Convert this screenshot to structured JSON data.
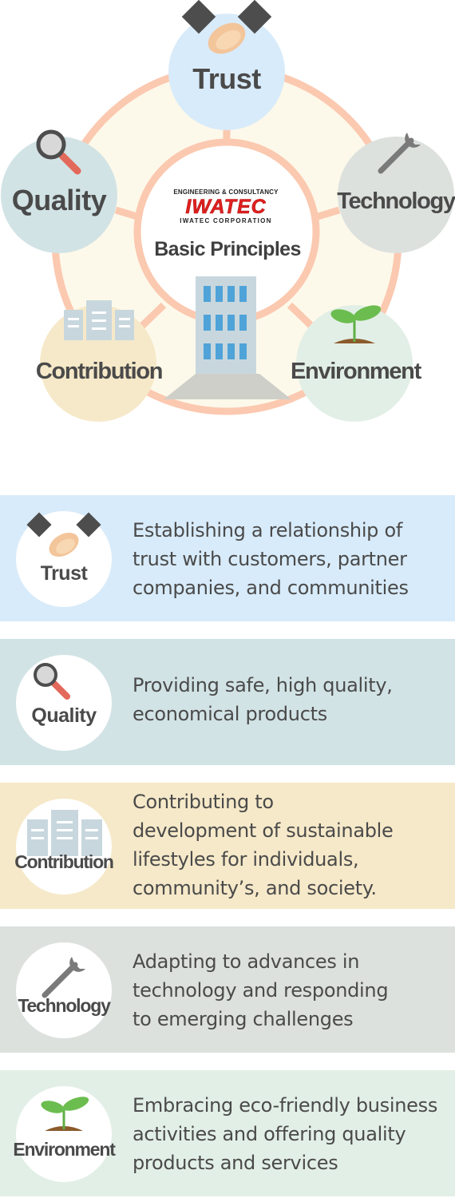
{
  "diagram": {
    "center": {
      "logo_top": "ENGINEERING & CONSULTANCY",
      "logo_main": "IWATEC",
      "logo_bottom": "IWATEC CORPORATION",
      "title": "Basic Principles"
    },
    "nodes": {
      "trust": "Trust",
      "quality": "Quality",
      "technology": "Technology",
      "contribution": "Contribution",
      "environment": "Environment"
    }
  },
  "cards": [
    {
      "label": "Trust",
      "icon": "handshake-icon",
      "color": "#d8ebfa",
      "lines": [
        "Establishing a relationship of",
        "trust with customers, partner",
        "companies, and communities"
      ]
    },
    {
      "label": "Quality",
      "icon": "magnifier-icon",
      "color": "#d2e3e5",
      "lines": [
        "Providing safe, high quality,",
        "economical products"
      ]
    },
    {
      "label": "Contribution",
      "icon": "buildings-icon",
      "color": "#f6e9c9",
      "lines": [
        "Contributing to",
        "development of sustainable",
        "lifestyles for individuals,",
        "community’s, and society."
      ]
    },
    {
      "label": "Technology",
      "icon": "wrench-icon",
      "color": "#dde1de",
      "lines": [
        "Adapting to advances in",
        "technology and responding",
        "to emerging challenges"
      ]
    },
    {
      "label": "Environment",
      "icon": "sprout-icon",
      "color": "#e2efe6",
      "lines": [
        "Embracing eco-friendly business",
        "activities and offering quality",
        "products and services"
      ]
    }
  ]
}
